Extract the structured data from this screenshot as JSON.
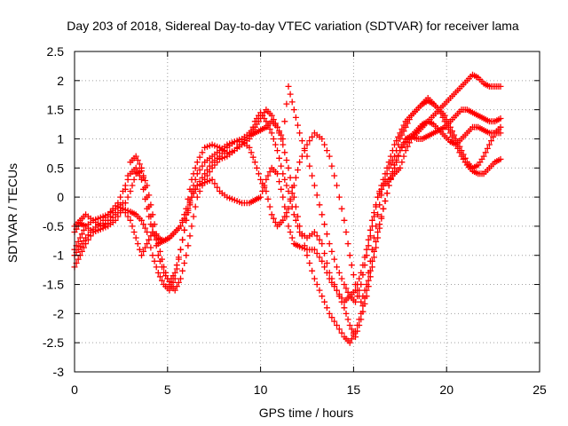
{
  "chart_data": {
    "type": "scatter",
    "title": "Day 203 of 2018, Sidereal Day-to-day VTEC variation (SDTVAR) for receiver lama",
    "xlabel": "GPS time / hours",
    "ylabel": "SDTVAR / TECUs",
    "xlim": [
      0,
      25
    ],
    "ylim": [
      -3,
      2.5
    ],
    "x_ticks": [
      "0",
      "5",
      "10",
      "15",
      "20",
      "25"
    ],
    "y_ticks": [
      "2.5",
      "2",
      "1.5",
      "1",
      "0.5",
      "0",
      "-0.5",
      "-1",
      "-1.5",
      "-2",
      "-2.5",
      "-3"
    ],
    "grid": true,
    "legend": "none",
    "marker": "+",
    "colors": {
      "points": "#ff0000",
      "grid": "#a0a0a0",
      "axes": "#000000"
    },
    "series": [
      {
        "x": [
          0.0,
          0.3,
          0.6,
          1.0,
          1.4,
          1.8,
          2.2,
          2.6,
          3.0,
          3.3,
          3.6,
          3.9,
          4.2,
          4.5,
          4.8,
          5.1,
          5.4,
          5.7,
          6.0,
          6.3,
          6.6,
          7.0,
          7.4,
          7.8,
          8.2,
          8.6,
          9.0,
          9.4,
          9.7,
          10.0,
          10.3,
          10.6,
          10.9,
          11.2,
          11.5,
          11.8,
          12.1,
          12.5,
          12.9,
          13.3,
          13.7,
          14.1,
          14.5,
          14.8,
          15.1,
          15.4,
          15.7,
          16.0,
          16.3,
          16.6,
          16.9,
          17.2,
          17.5,
          17.8,
          18.1,
          18.4,
          18.7,
          19.0,
          19.3,
          19.6,
          19.9,
          20.2,
          20.5,
          20.8,
          21.1,
          21.4,
          21.7,
          22.0,
          22.3,
          22.6,
          22.9
        ],
        "y": [
          -0.6,
          -0.45,
          -0.5,
          -0.6,
          -0.55,
          -0.4,
          -0.2,
          0.1,
          0.4,
          0.5,
          0.3,
          -0.2,
          -0.6,
          -0.8,
          -0.75,
          -0.7,
          -0.6,
          -0.5,
          -0.2,
          0.3,
          0.6,
          0.85,
          0.9,
          0.85,
          0.75,
          0.8,
          0.9,
          1.0,
          1.3,
          1.45,
          1.3,
          1.1,
          0.8,
          0.4,
          0.1,
          -0.3,
          -0.6,
          -0.7,
          -0.6,
          -0.8,
          -1.3,
          -1.6,
          -1.8,
          -1.7,
          -1.6,
          -1.3,
          -0.9,
          -0.4,
          0.0,
          0.2,
          0.3,
          0.4,
          0.5,
          0.8,
          1.0,
          1.1,
          1.2,
          1.3,
          1.4,
          1.5,
          1.6,
          1.7,
          1.8,
          1.9,
          2.0,
          2.1,
          2.05,
          1.95,
          1.9,
          1.9,
          1.9
        ]
      },
      {
        "x": [
          0.0,
          0.3,
          0.6,
          1.0,
          1.4,
          1.8,
          2.2,
          2.6,
          3.0,
          3.3,
          3.6,
          3.9,
          4.2,
          4.5,
          4.8,
          5.1,
          5.4,
          5.7,
          6.0,
          6.3,
          6.6,
          7.0,
          7.4,
          7.8,
          8.2,
          8.6,
          9.0,
          9.4,
          9.7,
          10.0,
          10.3,
          10.6,
          10.9,
          11.2,
          11.5,
          11.8,
          12.1,
          12.5,
          12.9,
          13.3,
          13.7,
          14.1,
          14.5,
          14.8,
          15.1,
          15.4,
          15.7,
          16.0,
          16.3,
          16.6,
          16.9,
          17.2,
          17.5,
          17.8,
          18.1,
          18.4,
          18.7,
          19.0,
          19.3,
          19.6,
          19.9,
          20.2,
          20.5,
          20.8,
          21.1,
          21.4,
          21.7,
          22.0,
          22.3,
          22.6,
          22.9
        ],
        "y": [
          -1.2,
          -1.0,
          -0.8,
          -0.6,
          -0.55,
          -0.5,
          -0.4,
          -0.2,
          0.1,
          0.4,
          0.45,
          0.2,
          -0.3,
          -0.8,
          -1.2,
          -1.5,
          -1.6,
          -1.4,
          -1.0,
          -0.5,
          0.0,
          0.3,
          0.5,
          0.65,
          0.7,
          0.8,
          0.95,
          1.05,
          1.1,
          1.15,
          1.2,
          1.3,
          1.2,
          0.9,
          0.5,
          0.0,
          -0.5,
          -1.0,
          -1.4,
          -1.7,
          -2.0,
          -2.2,
          -2.4,
          -2.5,
          -2.3,
          -2.0,
          -1.6,
          -1.1,
          -0.6,
          -0.2,
          0.2,
          0.5,
          0.8,
          1.0,
          1.05,
          1.0,
          1.0,
          1.05,
          1.1,
          1.15,
          1.2,
          1.3,
          1.4,
          1.5,
          1.5,
          1.45,
          1.4,
          1.35,
          1.3,
          1.3,
          1.35
        ]
      },
      {
        "x": [
          0.0,
          0.3,
          0.6,
          1.0,
          1.4,
          1.8,
          2.2,
          2.6,
          3.0,
          3.3,
          3.6,
          3.9,
          4.2,
          4.5,
          4.8,
          5.1,
          5.4,
          5.7,
          6.0,
          6.3,
          6.6,
          7.0,
          7.4,
          7.8,
          8.2,
          8.6,
          9.0,
          9.4,
          9.7,
          10.0,
          10.3,
          10.6,
          10.9,
          11.2,
          11.5,
          11.8,
          12.1,
          12.5,
          12.9,
          13.3,
          13.7,
          14.1,
          14.5,
          14.8,
          15.1,
          15.4,
          15.7,
          16.0,
          16.3,
          16.6,
          16.9,
          17.2,
          17.5,
          17.8,
          18.1,
          18.4,
          18.7,
          19.0,
          19.3,
          19.6,
          19.9,
          20.2,
          20.5,
          20.8,
          21.1,
          21.4,
          21.7,
          22.0,
          22.3,
          22.6,
          22.9
        ],
        "y": [
          -0.9,
          -0.7,
          -0.5,
          -0.4,
          -0.35,
          -0.3,
          -0.2,
          -0.1,
          0.6,
          0.7,
          0.5,
          0.0,
          -0.5,
          -1.0,
          -1.3,
          -1.45,
          -1.3,
          -0.9,
          -0.4,
          0.1,
          0.4,
          0.6,
          0.7,
          0.8,
          0.9,
          0.95,
          0.95,
          0.85,
          0.6,
          0.3,
          0.1,
          -0.3,
          -0.5,
          -0.4,
          -0.2,
          0.2,
          0.6,
          0.9,
          1.1,
          1.0,
          0.7,
          0.2,
          -0.4,
          -1.0,
          -1.5,
          -1.8,
          -1.5,
          -0.9,
          -0.3,
          0.2,
          0.5,
          0.7,
          1.0,
          1.2,
          1.4,
          1.5,
          1.6,
          1.65,
          1.6,
          1.5,
          1.3,
          1.1,
          0.9,
          0.7,
          0.55,
          0.45,
          0.4,
          0.4,
          0.5,
          0.6,
          0.65
        ]
      },
      {
        "x": [
          0.0,
          0.3,
          0.6,
          1.0,
          1.4,
          1.8,
          2.2,
          2.6,
          3.0,
          3.3,
          3.6,
          3.9,
          4.2,
          4.5,
          4.8,
          5.1,
          5.4,
          5.7,
          6.0,
          6.3,
          6.6,
          7.0,
          7.4,
          7.8,
          8.2,
          8.6,
          9.0,
          9.4,
          9.7,
          10.0,
          10.3,
          10.6,
          10.9,
          11.2,
          11.5,
          11.8,
          12.1,
          12.5,
          12.9,
          13.3,
          13.7,
          14.1,
          14.5,
          14.8,
          15.1,
          15.4,
          15.7,
          16.0,
          16.3,
          16.6,
          16.9,
          17.2,
          17.5,
          17.8,
          18.1,
          18.4,
          18.7,
          19.0,
          19.3,
          19.6,
          19.9,
          20.2,
          20.5,
          20.8,
          21.1,
          21.4,
          21.7,
          22.0,
          22.3,
          22.6,
          22.9
        ],
        "y": [
          -1.0,
          -0.85,
          -0.7,
          -0.55,
          -0.45,
          -0.3,
          -0.15,
          -0.2,
          -0.25,
          -0.3,
          -0.4,
          -0.6,
          -1.0,
          -1.3,
          -1.5,
          -1.6,
          -1.4,
          -0.9,
          -0.4,
          0.0,
          0.2,
          0.25,
          0.3,
          0.1,
          0.0,
          -0.05,
          -0.1,
          -0.1,
          -0.05,
          0.0,
          0.3,
          0.5,
          0.4,
          0.0,
          -0.5,
          -0.8,
          -0.85,
          -0.9,
          -0.9,
          -1.1,
          -1.4,
          -1.6,
          -1.9,
          -2.2,
          -2.4,
          -2.1,
          -1.7,
          -1.2,
          -0.7,
          -0.2,
          0.2,
          0.55,
          0.8,
          0.95,
          1.05,
          1.15,
          1.25,
          1.3,
          1.25,
          1.15,
          1.05,
          0.95,
          0.9,
          1.0,
          1.1,
          1.2,
          1.2,
          1.15,
          1.1,
          1.1,
          1.1
        ]
      },
      {
        "x": [
          0.0,
          0.3,
          0.6,
          1.0,
          1.4,
          1.8,
          2.2,
          2.6,
          3.0,
          3.3,
          3.6,
          3.9,
          4.2,
          4.5,
          4.8,
          5.1,
          5.4,
          5.7,
          6.0,
          6.3,
          6.6,
          7.0,
          7.4,
          7.8,
          8.2,
          8.6,
          9.0,
          9.4,
          9.7,
          10.0,
          10.3,
          10.6,
          10.9,
          11.2,
          11.5,
          11.8,
          12.1,
          12.5,
          12.9,
          13.3,
          13.7,
          14.1,
          14.5,
          14.8,
          15.1,
          15.4,
          15.7,
          16.0,
          16.3,
          16.6,
          16.9,
          17.2,
          17.5,
          17.8,
          18.1,
          18.4,
          18.7,
          19.0,
          19.3,
          19.6,
          19.9,
          20.2,
          20.5,
          20.8,
          21.1,
          21.4,
          21.7,
          22.0,
          22.3,
          22.6,
          22.9
        ],
        "y": [
          -0.5,
          -0.4,
          -0.3,
          -0.4,
          -0.5,
          -0.45,
          -0.3,
          -0.2,
          -0.4,
          -0.7,
          -1.0,
          -0.8,
          -0.6,
          -0.7,
          -0.75,
          -0.7,
          -0.6,
          -0.5,
          -0.3,
          0.0,
          0.2,
          0.4,
          0.6,
          0.7,
          0.85,
          0.95,
          1.0,
          1.1,
          1.2,
          1.35,
          1.5,
          1.4,
          1.2,
          1.0,
          1.9,
          1.5,
          1.1,
          0.7,
          0.2,
          -0.3,
          -0.8,
          -1.2,
          -1.5,
          -1.7,
          -1.8,
          -1.5,
          -1.0,
          -0.5,
          0.0,
          0.3,
          0.6,
          0.9,
          1.1,
          1.3,
          1.4,
          1.5,
          1.6,
          1.7,
          1.6,
          1.5,
          1.4,
          1.2,
          1.0,
          0.8,
          0.6,
          0.5,
          0.55,
          0.7,
          0.9,
          1.1,
          1.2
        ]
      }
    ]
  }
}
